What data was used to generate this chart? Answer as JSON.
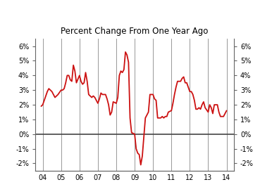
{
  "title": "Percent Change From One Year Ago",
  "line_color": "#cc1111",
  "line_width": 1.3,
  "background_color": "#ffffff",
  "ylim": [
    -2.5,
    6.5
  ],
  "yticks": [
    -2,
    -1,
    0,
    1,
    2,
    3,
    4,
    5,
    6
  ],
  "ytick_labels": [
    "-2%",
    "-1%",
    "0%",
    "1%",
    "2%",
    "3%",
    "4%",
    "5%",
    "6%"
  ],
  "zero_line_color": "#444444",
  "grid_color": "#888888",
  "xtick_years": [
    2004,
    2005,
    2006,
    2007,
    2008,
    2009,
    2010,
    2011,
    2012,
    2013,
    2014
  ],
  "xtick_labels": [
    "04",
    "05",
    "06",
    "07",
    "08",
    "09",
    "10",
    "11",
    "12",
    "13",
    "14"
  ],
  "xlim": [
    2003.6,
    2014.4
  ],
  "data": {
    "x": [
      2003.917,
      2004.0,
      2004.083,
      2004.167,
      2004.25,
      2004.333,
      2004.417,
      2004.5,
      2004.583,
      2004.667,
      2004.75,
      2004.833,
      2005.0,
      2005.083,
      2005.167,
      2005.25,
      2005.333,
      2005.417,
      2005.5,
      2005.583,
      2005.667,
      2005.75,
      2005.833,
      2006.0,
      2006.083,
      2006.167,
      2006.25,
      2006.333,
      2006.417,
      2006.5,
      2006.583,
      2006.667,
      2006.75,
      2006.833,
      2007.0,
      2007.083,
      2007.167,
      2007.25,
      2007.333,
      2007.417,
      2007.5,
      2007.583,
      2007.667,
      2007.75,
      2007.833,
      2008.0,
      2008.083,
      2008.167,
      2008.25,
      2008.333,
      2008.417,
      2008.5,
      2008.583,
      2008.667,
      2008.75,
      2008.833,
      2009.0,
      2009.083,
      2009.167,
      2009.25,
      2009.333,
      2009.417,
      2009.5,
      2009.583,
      2009.667,
      2009.75,
      2009.833,
      2010.0,
      2010.083,
      2010.167,
      2010.25,
      2010.333,
      2010.417,
      2010.5,
      2010.583,
      2010.667,
      2010.75,
      2010.833,
      2011.0,
      2011.083,
      2011.167,
      2011.25,
      2011.333,
      2011.417,
      2011.5,
      2011.583,
      2011.667,
      2011.75,
      2011.833,
      2012.0,
      2012.083,
      2012.167,
      2012.25,
      2012.333,
      2012.417,
      2012.5,
      2012.583,
      2012.667,
      2012.75,
      2012.833,
      2013.0,
      2013.083,
      2013.167,
      2013.25,
      2013.333,
      2013.417,
      2013.5,
      2013.583,
      2013.667,
      2013.75,
      2013.833,
      2014.0
    ],
    "y": [
      1.9,
      2.0,
      2.3,
      2.6,
      2.9,
      3.1,
      3.0,
      2.9,
      2.7,
      2.5,
      2.6,
      2.7,
      3.0,
      3.0,
      3.1,
      3.5,
      4.0,
      4.0,
      3.7,
      3.6,
      4.7,
      4.3,
      3.5,
      4.0,
      3.6,
      3.4,
      3.5,
      4.2,
      3.6,
      2.7,
      2.6,
      2.5,
      2.6,
      2.5,
      2.1,
      2.4,
      2.8,
      2.7,
      2.7,
      2.7,
      2.4,
      2.0,
      1.3,
      1.5,
      2.2,
      2.1,
      2.5,
      4.0,
      4.3,
      4.2,
      4.4,
      5.6,
      5.4,
      4.9,
      1.1,
      0.1,
      0.0,
      -1.0,
      -1.3,
      -1.4,
      -2.1,
      -1.5,
      -0.2,
      1.1,
      1.3,
      1.5,
      2.7,
      2.7,
      2.4,
      2.3,
      1.1,
      1.1,
      1.1,
      1.2,
      1.1,
      1.2,
      1.2,
      1.5,
      1.6,
      2.1,
      2.7,
      3.2,
      3.6,
      3.6,
      3.6,
      3.8,
      3.9,
      3.5,
      3.5,
      2.9,
      2.9,
      2.7,
      2.3,
      1.7,
      1.7,
      1.8,
      1.7,
      2.0,
      2.2,
      1.8,
      1.5,
      2.0,
      1.8,
      1.4,
      2.0,
      2.0,
      2.0,
      1.5,
      1.2,
      1.2,
      1.2,
      1.6
    ]
  }
}
